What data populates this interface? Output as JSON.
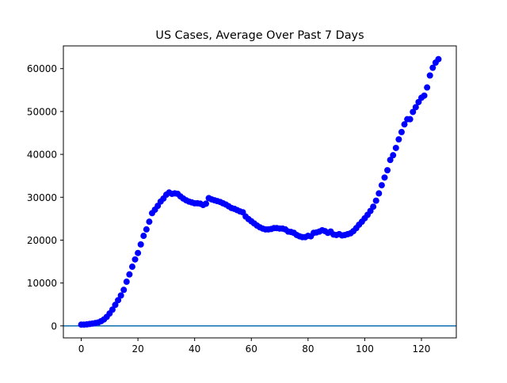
{
  "chart_data": {
    "type": "scatter",
    "title": "US Cases, Average Over Past 7 Days",
    "xlabel": "",
    "ylabel": "",
    "xlim": [
      -6.3,
      132.3
    ],
    "ylim": [
      -2800,
      65300
    ],
    "xticks": [
      0,
      20,
      40,
      60,
      80,
      100,
      120
    ],
    "yticks": [
      0,
      10000,
      20000,
      30000,
      40000,
      50000,
      60000
    ],
    "grid": false,
    "legend": "none",
    "reference_line": {
      "y": 0,
      "color": "#1f77b4"
    },
    "series": [
      {
        "marker_color": "#0000ff",
        "marker": "circle",
        "x": [
          0,
          1,
          2,
          3,
          4,
          5,
          6,
          7,
          8,
          9,
          10,
          11,
          12,
          13,
          14,
          15,
          16,
          17,
          18,
          19,
          20,
          21,
          22,
          23,
          24,
          25,
          26,
          27,
          28,
          29,
          30,
          31,
          32,
          33,
          34,
          35,
          36,
          37,
          38,
          39,
          40,
          41,
          42,
          43,
          44,
          45,
          46,
          47,
          48,
          49,
          50,
          51,
          52,
          53,
          54,
          55,
          56,
          57,
          58,
          59,
          60,
          61,
          62,
          63,
          64,
          65,
          66,
          67,
          68,
          69,
          70,
          71,
          72,
          73,
          74,
          75,
          76,
          77,
          78,
          79,
          80,
          81,
          82,
          83,
          84,
          85,
          86,
          87,
          88,
          89,
          90,
          91,
          92,
          93,
          94,
          95,
          96,
          97,
          98,
          99,
          100,
          101,
          102,
          103,
          104,
          105,
          106,
          107,
          108,
          109,
          110,
          111,
          112,
          113,
          114,
          115,
          116,
          117,
          118,
          119,
          120,
          121,
          122,
          123,
          124,
          125,
          126
        ],
        "y": [
          300,
          300,
          350,
          450,
          550,
          650,
          800,
          1100,
          1500,
          2100,
          2900,
          3800,
          4900,
          6000,
          7100,
          8400,
          10300,
          12000,
          13800,
          15500,
          17000,
          19000,
          21000,
          22500,
          24300,
          26300,
          27100,
          28000,
          29000,
          29700,
          30600,
          31100,
          30800,
          30900,
          30800,
          30200,
          29700,
          29300,
          29000,
          28800,
          28600,
          28600,
          28500,
          28200,
          28500,
          29800,
          29500,
          29300,
          29100,
          28900,
          28600,
          28300,
          27900,
          27500,
          27300,
          27000,
          26700,
          26500,
          25500,
          24900,
          24400,
          23900,
          23400,
          23000,
          22700,
          22500,
          22500,
          22600,
          22800,
          22800,
          22700,
          22700,
          22500,
          22000,
          21900,
          21700,
          21200,
          20900,
          20700,
          20700,
          21000,
          20900,
          21700,
          21800,
          22000,
          22300,
          22100,
          21700,
          22000,
          21300,
          21200,
          21400,
          21100,
          21200,
          21400,
          21600,
          22100,
          22800,
          23600,
          24300,
          25100,
          25900,
          26800,
          27800,
          29200,
          30900,
          32800,
          34600,
          36300,
          38700,
          39800,
          41500,
          43500,
          45200,
          47000,
          48200,
          48200,
          49900,
          51000,
          52200,
          53200,
          53700,
          55600,
          58400,
          60200,
          61400,
          62200
        ]
      }
    ]
  }
}
